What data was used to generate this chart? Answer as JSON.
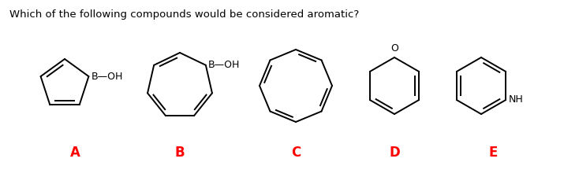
{
  "title": "Which of the following compounds would be considered aromatic?",
  "title_color": "#000000",
  "title_fontsize": 9.5,
  "labels": [
    "A",
    "B",
    "C",
    "D",
    "E"
  ],
  "label_color": "#FF0000",
  "label_fontsize": 12,
  "background_color": "#FFFFFF",
  "line_color": "#000000",
  "line_width": 1.4,
  "fig_width": 7.15,
  "fig_height": 2.25,
  "dpi": 100
}
